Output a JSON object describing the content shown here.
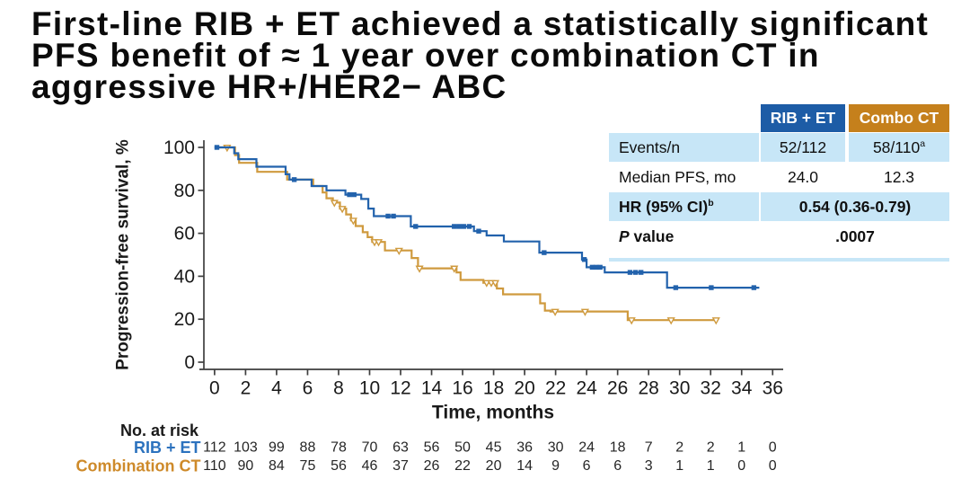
{
  "title": {
    "lines": [
      "First-line RIB + ET achieved a statistically significant",
      "PFS benefit of ≈ 1 year over combination CT in",
      "aggressive HR+/HER2− ABC"
    ]
  },
  "colors": {
    "rib_curve": "#2262ac",
    "combo_curve": "#cf9a3e",
    "rib_header_bg": "#1d5ca6",
    "combo_header_bg": "#c5801c",
    "shaded_row_bg": "#c7e6f7",
    "rib_label": "#2c72be",
    "combo_label": "#ce8a2a",
    "axis": "#3f3f3f",
    "text": "#1a1a1a"
  },
  "stats_table": {
    "headers": [
      {
        "label": "RIB + ET"
      },
      {
        "label": "Combo CT"
      }
    ],
    "rows": [
      {
        "label": "Events/n",
        "value1": "52/112",
        "value2": "58/110",
        "value2_sup": "a"
      },
      {
        "label": "Median PFS, mo",
        "value1": "24.0",
        "value2": "12.3"
      },
      {
        "label": "HR (95% CI)",
        "label_sup": "b",
        "merged_value": "0.54 (0.36-0.79)"
      },
      {
        "label_italic": "P",
        "label_rest": " value",
        "merged_value": ".0007"
      }
    ]
  },
  "chart_data": {
    "type": "km_step",
    "xlabel": "Time, months",
    "ylabel": "Progression-free survival, %",
    "xlim": [
      0,
      36
    ],
    "xtick_step": 2,
    "ylim": [
      0,
      100
    ],
    "ytick_step": 20,
    "grid": false,
    "series": [
      {
        "name": "Combination CT",
        "color": "#cf9a3e",
        "marker": "open-triangle-down",
        "steps": [
          [
            1.32,
            96.4
          ],
          [
            1.58,
            92.8
          ],
          [
            2.75,
            88.6
          ],
          [
            4.68,
            85.0
          ],
          [
            6.36,
            82.0
          ],
          [
            6.97,
            79.0
          ],
          [
            7.22,
            76.3
          ],
          [
            7.63,
            74.3
          ],
          [
            8.09,
            71.5
          ],
          [
            8.49,
            68.8
          ],
          [
            8.8,
            66.0
          ],
          [
            9.1,
            63.4
          ],
          [
            9.56,
            60.5
          ],
          [
            9.87,
            58.2
          ],
          [
            10.17,
            56.0
          ],
          [
            10.99,
            52.0
          ],
          [
            12.71,
            48.5
          ],
          [
            13.12,
            43.7
          ],
          [
            15.61,
            41.8
          ],
          [
            15.87,
            38.3
          ],
          [
            17.34,
            37.0
          ],
          [
            18.21,
            34.3
          ],
          [
            18.61,
            31.6
          ],
          [
            21.0,
            27.4
          ],
          [
            21.31,
            24.0
          ],
          [
            21.67,
            23.6
          ],
          [
            26.65,
            19.6
          ]
        ],
        "end": 32.4,
        "censors": [
          [
            0.81,
            100
          ],
          [
            7.73,
            74.3
          ],
          [
            8.24,
            71.5
          ],
          [
            8.95,
            66.0
          ],
          [
            10.32,
            56.0
          ],
          [
            10.58,
            56.0
          ],
          [
            11.9,
            52.0
          ],
          [
            13.22,
            43.7
          ],
          [
            15.46,
            43.7
          ],
          [
            17.55,
            37.0
          ],
          [
            17.85,
            37.0
          ],
          [
            18.11,
            37.0
          ],
          [
            21.97,
            23.6
          ],
          [
            23.9,
            23.6
          ],
          [
            26.9,
            19.6
          ],
          [
            29.45,
            19.6
          ],
          [
            32.35,
            19.6
          ]
        ]
      },
      {
        "name": "RIB + ET",
        "color": "#2262ac",
        "marker": "filled-square",
        "steps": [
          [
            1.27,
            97.3
          ],
          [
            1.53,
            94.5
          ],
          [
            2.7,
            91.0
          ],
          [
            4.58,
            87.5
          ],
          [
            4.83,
            85.0
          ],
          [
            6.26,
            82.0
          ],
          [
            7.22,
            80.0
          ],
          [
            8.44,
            78.0
          ],
          [
            9.46,
            76.0
          ],
          [
            9.92,
            71.5
          ],
          [
            10.27,
            68.0
          ],
          [
            12.66,
            63.2
          ],
          [
            16.73,
            61.0
          ],
          [
            17.55,
            59.0
          ],
          [
            18.66,
            56.2
          ],
          [
            20.95,
            51.0
          ],
          [
            23.7,
            47.8
          ],
          [
            24.0,
            44.2
          ],
          [
            25.17,
            41.8
          ],
          [
            29.19,
            34.7
          ]
        ],
        "end": 35.14,
        "censors": [
          [
            0.15,
            100
          ],
          [
            5.14,
            85.0
          ],
          [
            8.7,
            78.0
          ],
          [
            9.0,
            78.0
          ],
          [
            11.19,
            68.0
          ],
          [
            11.54,
            68.0
          ],
          [
            12.97,
            63.2
          ],
          [
            15.46,
            63.2
          ],
          [
            15.77,
            63.2
          ],
          [
            16.07,
            63.2
          ],
          [
            16.43,
            63.2
          ],
          [
            17.04,
            61.0
          ],
          [
            21.26,
            51.0
          ],
          [
            23.85,
            47.8
          ],
          [
            24.36,
            44.2
          ],
          [
            24.62,
            44.2
          ],
          [
            24.87,
            44.2
          ],
          [
            26.8,
            41.8
          ],
          [
            27.16,
            41.8
          ],
          [
            27.51,
            41.8
          ],
          [
            29.75,
            34.7
          ],
          [
            32.04,
            34.7
          ],
          [
            34.79,
            34.7
          ]
        ]
      }
    ],
    "no_at_risk": {
      "title": "No. at risk",
      "times": [
        0,
        2,
        4,
        6,
        8,
        10,
        12,
        14,
        16,
        18,
        20,
        22,
        24,
        26,
        28,
        30,
        32,
        34,
        36
      ],
      "rows": [
        {
          "label": "RIB + ET",
          "color": "#2c72be",
          "counts": [
            112,
            103,
            99,
            88,
            78,
            70,
            63,
            56,
            50,
            45,
            36,
            30,
            24,
            18,
            7,
            2,
            2,
            1,
            0
          ]
        },
        {
          "label": "Combination CT",
          "color": "#ce8a2a",
          "counts": [
            110,
            90,
            84,
            75,
            56,
            46,
            37,
            26,
            22,
            20,
            14,
            9,
            6,
            6,
            3,
            1,
            1,
            0,
            0
          ]
        }
      ]
    }
  }
}
